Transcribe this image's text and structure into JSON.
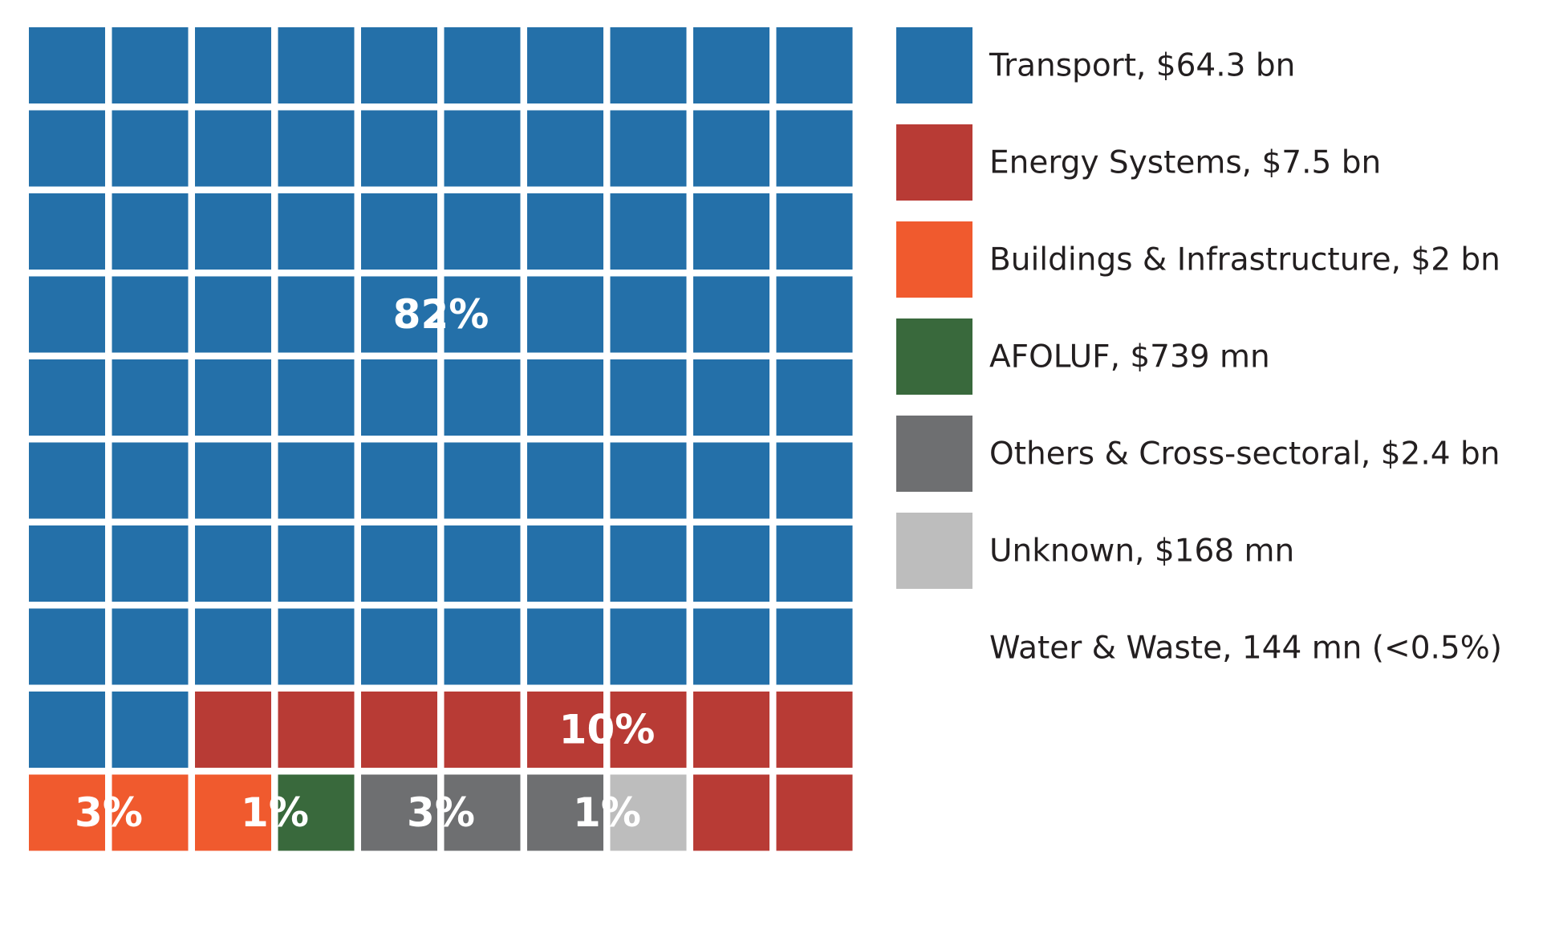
{
  "chart_data": {
    "type": "waffle",
    "title": "",
    "grid": {
      "rows": 10,
      "cols": 10,
      "unit_percent": 1
    },
    "series": [
      {
        "key": "transport",
        "name": "Transport, $64.3 bn",
        "percent_label": "82%",
        "color": "#2470a9",
        "cells": [
          [
            0,
            0
          ],
          [
            0,
            1
          ],
          [
            0,
            2
          ],
          [
            0,
            3
          ],
          [
            0,
            4
          ],
          [
            0,
            5
          ],
          [
            0,
            6
          ],
          [
            0,
            7
          ],
          [
            0,
            8
          ],
          [
            0,
            9
          ],
          [
            1,
            0
          ],
          [
            1,
            1
          ],
          [
            1,
            2
          ],
          [
            1,
            3
          ],
          [
            1,
            4
          ],
          [
            1,
            5
          ],
          [
            1,
            6
          ],
          [
            1,
            7
          ],
          [
            1,
            8
          ],
          [
            1,
            9
          ],
          [
            2,
            0
          ],
          [
            2,
            1
          ],
          [
            2,
            2
          ],
          [
            2,
            3
          ],
          [
            2,
            4
          ],
          [
            2,
            5
          ],
          [
            2,
            6
          ],
          [
            2,
            7
          ],
          [
            2,
            8
          ],
          [
            2,
            9
          ],
          [
            3,
            0
          ],
          [
            3,
            1
          ],
          [
            3,
            2
          ],
          [
            3,
            3
          ],
          [
            3,
            4
          ],
          [
            3,
            5
          ],
          [
            3,
            6
          ],
          [
            3,
            7
          ],
          [
            3,
            8
          ],
          [
            3,
            9
          ],
          [
            4,
            0
          ],
          [
            4,
            1
          ],
          [
            4,
            2
          ],
          [
            4,
            3
          ],
          [
            4,
            4
          ],
          [
            4,
            5
          ],
          [
            4,
            6
          ],
          [
            4,
            7
          ],
          [
            4,
            8
          ],
          [
            4,
            9
          ],
          [
            5,
            0
          ],
          [
            5,
            1
          ],
          [
            5,
            2
          ],
          [
            5,
            3
          ],
          [
            5,
            4
          ],
          [
            5,
            5
          ],
          [
            5,
            6
          ],
          [
            5,
            7
          ],
          [
            5,
            8
          ],
          [
            5,
            9
          ],
          [
            6,
            0
          ],
          [
            6,
            1
          ],
          [
            6,
            2
          ],
          [
            6,
            3
          ],
          [
            6,
            4
          ],
          [
            6,
            5
          ],
          [
            6,
            6
          ],
          [
            6,
            7
          ],
          [
            6,
            8
          ],
          [
            6,
            9
          ],
          [
            7,
            0
          ],
          [
            7,
            1
          ],
          [
            7,
            2
          ],
          [
            7,
            3
          ],
          [
            7,
            4
          ],
          [
            7,
            5
          ],
          [
            7,
            6
          ],
          [
            7,
            7
          ],
          [
            7,
            8
          ],
          [
            7,
            9
          ],
          [
            8,
            0
          ],
          [
            8,
            1
          ]
        ],
        "label_cell": [
          3,
          5
        ]
      },
      {
        "key": "energy",
        "name": "Energy Systems, $7.5 bn",
        "percent_label": "10%",
        "color": "#b83b35",
        "cells": [
          [
            8,
            2
          ],
          [
            8,
            3
          ],
          [
            8,
            4
          ],
          [
            8,
            5
          ],
          [
            8,
            6
          ],
          [
            8,
            7
          ],
          [
            8,
            8
          ],
          [
            8,
            9
          ],
          [
            9,
            8
          ],
          [
            9,
            9
          ]
        ],
        "label_cell": [
          8,
          7
        ]
      },
      {
        "key": "buildings",
        "name": "Buildings & Infrastructure, $2 bn",
        "percent_label": "3%",
        "color": "#f05a2e",
        "cells": [
          [
            9,
            0
          ],
          [
            9,
            1
          ],
          [
            9,
            2
          ]
        ],
        "label_cell": [
          9,
          1
        ]
      },
      {
        "key": "afoluf",
        "name": "AFOLUF, $739 mn",
        "percent_label": "1%",
        "color": "#39693c",
        "cells": [
          [
            9,
            3
          ]
        ],
        "label_cell": [
          9,
          3
        ]
      },
      {
        "key": "others",
        "name": "Others & Cross-sectoral, $2.4 bn",
        "percent_label": "3%",
        "color": "#6e6f71",
        "cells": [
          [
            9,
            4
          ],
          [
            9,
            5
          ],
          [
            9,
            6
          ]
        ],
        "label_cell": [
          9,
          5
        ]
      },
      {
        "key": "unknown",
        "name": "Unknown, $168 mn",
        "percent_label": "1%",
        "color": "#bdbdbd",
        "cells": [
          [
            9,
            7
          ]
        ],
        "label_cell": [
          9,
          7
        ]
      },
      {
        "key": "water",
        "name": "Water & Waste, 144 mn (<0.5%)",
        "percent_label": "",
        "color": "#ffffff",
        "cells": []
      }
    ],
    "legend": {
      "position": "right"
    }
  }
}
